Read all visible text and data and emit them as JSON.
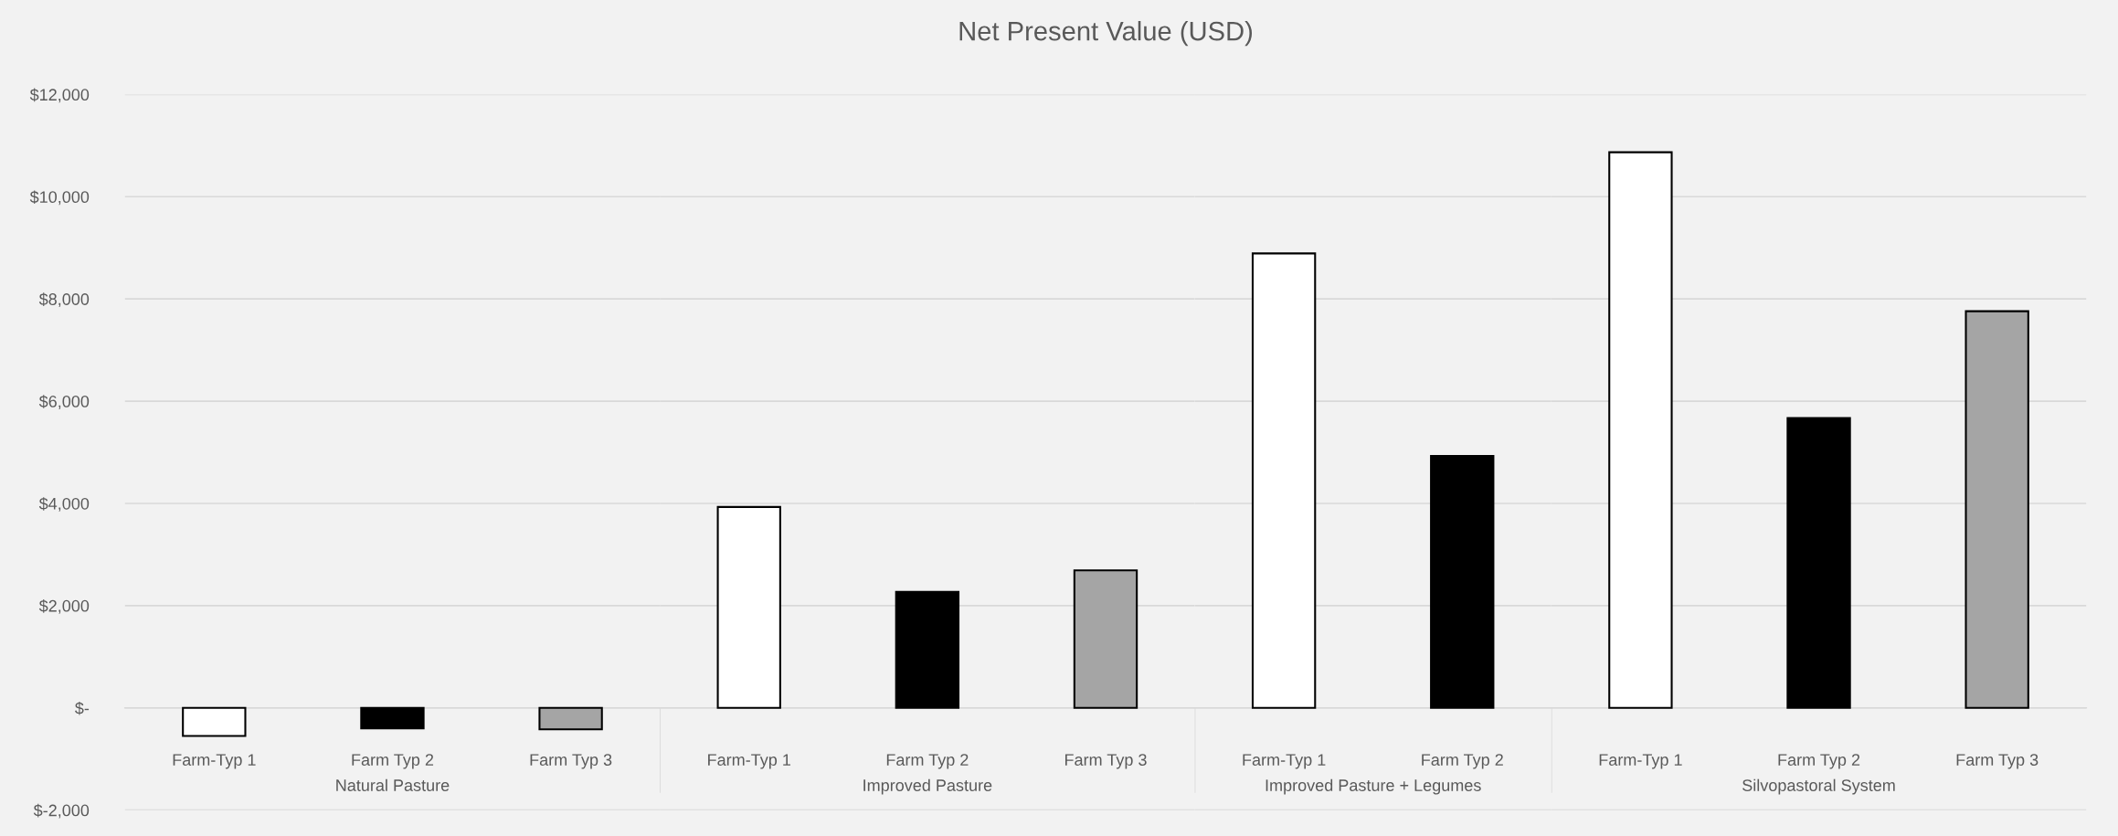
{
  "chart_data": [
    {
      "type": "bar",
      "xlabel": "Natural Pasture",
      "categories": [
        "Farm-Typ 1",
        "Farm Typ 2",
        "Farm Typ 3"
      ],
      "values": [
        -550,
        -400,
        -420
      ],
      "colors": [
        "#ffffff",
        "#000000",
        "#a5a5a5"
      ],
      "ylim": [
        -2000,
        12000
      ],
      "yticks": [
        {
          "value": -2000,
          "label": "$-2,000"
        },
        {
          "value": 0,
          "label": "$-"
        },
        {
          "value": 2000,
          "label": "$2,000"
        },
        {
          "value": 4000,
          "label": "$4,000"
        },
        {
          "value": 6000,
          "label": "$6,000"
        },
        {
          "value": 8000,
          "label": "$8,000"
        },
        {
          "value": 10000,
          "label": "$10,000"
        },
        {
          "value": 12000,
          "label": "$12,000"
        }
      ],
      "grid": "y"
    },
    {
      "type": "bar",
      "title": "Net Present Value (USD)",
      "xlabel": "Improved Pasture",
      "categories": [
        "Farm-Typ 1",
        "Farm Typ 2",
        "Farm Typ 3"
      ],
      "values": [
        3930,
        2270,
        2690
      ],
      "colors": [
        "#ffffff",
        "#000000",
        "#a5a5a5"
      ],
      "ylim": [
        -2000,
        12000
      ],
      "yticks": [
        -2000,
        0,
        2000,
        4000,
        6000,
        8000,
        10000,
        12000
      ],
      "grid": "y",
      "tick_labels": "x"
    },
    {
      "type": "bar",
      "xlabel": "Improved Pasture + Legumes",
      "categories": [
        "Farm-Typ 1",
        "Farm Typ 2"
      ],
      "values": [
        8890,
        4930
      ],
      "colors": [
        "#ffffff",
        "#000000"
      ],
      "ylim": [
        -2000,
        12000
      ],
      "yticks": [
        -2000,
        0,
        2000,
        4000,
        6000,
        8000,
        10000,
        12000
      ],
      "grid": "y",
      "tick_labels": "x"
    },
    {
      "type": "bar",
      "xlabel": "Silvopastoral System",
      "categories": [
        "Farm-Typ 1",
        "Farm Typ 2",
        "Farm Typ 3"
      ],
      "values": [
        10870,
        5670,
        7760
      ],
      "colors": [
        "#ffffff",
        "#000000",
        "#a5a5a5"
      ],
      "ylim": [
        -2000,
        12000
      ],
      "yticks": [
        -2000,
        0,
        2000,
        4000,
        6000,
        8000,
        10000,
        12000
      ],
      "grid": "y",
      "tick_labels": "x"
    }
  ]
}
